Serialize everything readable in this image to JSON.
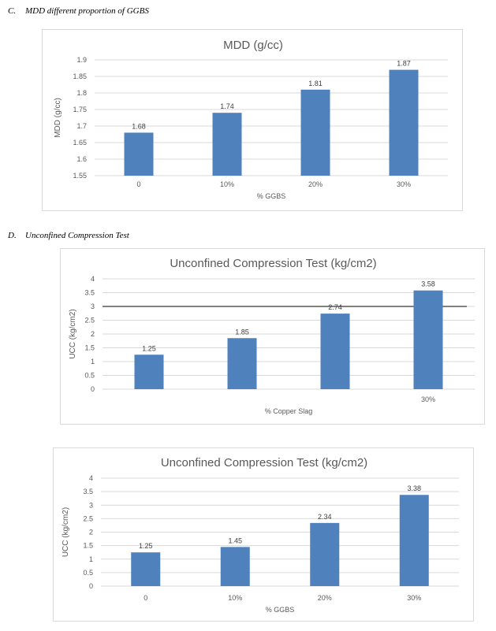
{
  "sections": {
    "c": {
      "number": "C.",
      "title": "MDD different proportion of GGBS"
    },
    "d": {
      "number": "D.",
      "title": "Unconfined Compression Test"
    }
  },
  "colors": {
    "bar": "#4f81bd",
    "grid": "#d9d9d9",
    "text": "#595959"
  },
  "chart_data": [
    {
      "type": "bar",
      "title": "MDD (g/cc)",
      "xlabel": "% GGBS",
      "ylabel": "MDD (g/cc)",
      "categories": [
        "0",
        "10%",
        "20%",
        "30%"
      ],
      "values": [
        1.68,
        1.74,
        1.81,
        1.87
      ],
      "value_labels": [
        "1.68",
        "1.74",
        "1.81",
        "1.87"
      ],
      "ylim": [
        1.55,
        1.9
      ],
      "yticks": [
        "1.55",
        "1.6",
        "1.65",
        "1.7",
        "1.75",
        "1.8",
        "1.85",
        "1.9"
      ],
      "grid": true
    },
    {
      "type": "bar",
      "title": "Unconfined Compression Test (kg/cm2)",
      "xlabel": "% Copper Slag",
      "ylabel": "UCC (kg/cm2)",
      "categories": [
        "",
        "",
        "",
        "30%"
      ],
      "values": [
        1.25,
        1.85,
        2.74,
        3.58
      ],
      "value_labels": [
        "1.25",
        "1.85",
        "2.74",
        "3.58"
      ],
      "ylim": [
        0,
        4
      ],
      "yticks": [
        "0",
        "0.5",
        "1",
        "1.5",
        "2",
        "2.5",
        "3",
        "3.5",
        "4"
      ],
      "grid": true,
      "reference_line": 3.0
    },
    {
      "type": "bar",
      "title": "Unconfined Compression Test (kg/cm2)",
      "xlabel": "% GGBS",
      "ylabel": "UCC (kg/cm2)",
      "categories": [
        "0",
        "10%",
        "20%",
        "30%"
      ],
      "values": [
        1.25,
        1.45,
        2.34,
        3.38
      ],
      "value_labels": [
        "1.25",
        "1.45",
        "2.34",
        "3.38"
      ],
      "ylim": [
        0,
        4
      ],
      "yticks": [
        "0",
        "0.5",
        "1",
        "1.5",
        "2",
        "2.5",
        "3",
        "3.5",
        "4"
      ],
      "grid": true
    }
  ]
}
